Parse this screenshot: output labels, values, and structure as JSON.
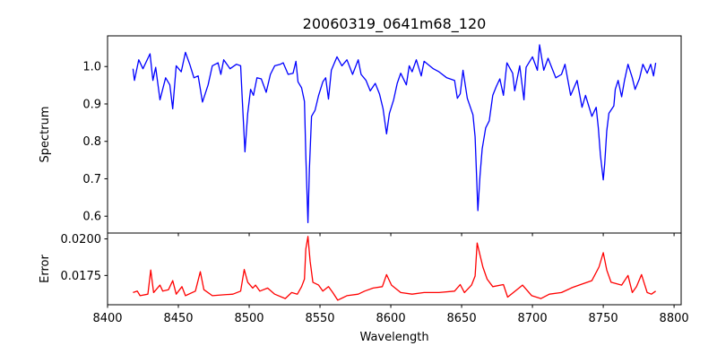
{
  "chart_data": [
    {
      "type": "line",
      "title": "20060319_0641m68_120",
      "xlabel": "",
      "ylabel": "Spectrum",
      "xlim": [
        8400,
        8805
      ],
      "ylim": [
        0.555,
        1.082
      ],
      "xticks": [
        8400,
        8450,
        8500,
        8550,
        8600,
        8650,
        8700,
        8750,
        8800
      ],
      "yticks": [
        0.6,
        0.7,
        0.8,
        0.9,
        1.0
      ],
      "ytick_labels": [
        "0.6",
        "0.7",
        "0.8",
        "0.9",
        "1.0"
      ],
      "color": "#0000ff",
      "grid": false,
      "x": [
        8418,
        8419,
        8422,
        8425,
        8430,
        8432,
        8434,
        8437,
        8441,
        8444,
        8446,
        8448.5,
        8452,
        8455,
        8458,
        8461,
        8464,
        8467,
        8471,
        8474,
        8478,
        8480,
        8482,
        8486.5,
        8491,
        8494,
        8495,
        8497,
        8499,
        8501,
        8503,
        8505.5,
        8508.5,
        8512,
        8515,
        8518,
        8522,
        8524,
        8527.5,
        8531,
        8533,
        8534.5,
        8537,
        8539,
        8540,
        8541.5,
        8542.5,
        8544,
        8546.5,
        8549,
        8552,
        8554,
        8556,
        8558,
        8562,
        8565.5,
        8569,
        8573,
        8577,
        8579,
        8582.5,
        8585.5,
        8589,
        8592,
        8594.5,
        8597,
        8599,
        8602,
        8604.5,
        8607,
        8611,
        8613,
        8615,
        8618,
        8621.5,
        8623.5,
        8630,
        8634,
        8639.5,
        8645,
        8647,
        8649,
        8651,
        8654,
        8658,
        8659.5,
        8661.5,
        8663,
        8664.5,
        8667,
        8669.5,
        8672,
        8674.5,
        8677,
        8679.5,
        8682,
        8686,
        8687.5,
        8691,
        8694,
        8695.5,
        8700,
        8703.5,
        8705,
        8708,
        8711,
        8716.5,
        8720.5,
        8723,
        8727,
        8731.5,
        8735,
        8737.5,
        8742,
        8745,
        8746.5,
        8748,
        8750,
        8751,
        8752.5,
        8754,
        8757.5,
        8758.5,
        8760.5,
        8763,
        8765,
        8767.5,
        8770.5,
        8772.5,
        8775.5,
        8778,
        8781,
        8783.5,
        8785.5,
        8787
      ],
      "y": [
        0.994,
        0.963,
        1.018,
        0.994,
        1.034,
        0.963,
        0.998,
        0.911,
        0.97,
        0.951,
        0.887,
        1.002,
        0.986,
        1.038,
        1.006,
        0.97,
        0.975,
        0.905,
        0.951,
        1.002,
        1.01,
        0.979,
        1.018,
        0.994,
        1.006,
        1.002,
        0.923,
        0.772,
        0.875,
        0.939,
        0.923,
        0.97,
        0.967,
        0.931,
        0.979,
        1.002,
        1.006,
        1.01,
        0.979,
        0.982,
        1.014,
        0.959,
        0.943,
        0.907,
        0.764,
        0.583,
        0.725,
        0.867,
        0.883,
        0.923,
        0.959,
        0.97,
        0.913,
        0.99,
        1.026,
        1.002,
        1.018,
        0.979,
        1.018,
        0.979,
        0.963,
        0.935,
        0.955,
        0.927,
        0.887,
        0.82,
        0.875,
        0.911,
        0.955,
        0.982,
        0.951,
        1.002,
        0.986,
        1.018,
        0.975,
        1.014,
        0.994,
        0.986,
        0.97,
        0.963,
        0.915,
        0.927,
        0.99,
        0.915,
        0.871,
        0.812,
        0.615,
        0.709,
        0.78,
        0.836,
        0.855,
        0.923,
        0.947,
        0.967,
        0.923,
        1.01,
        0.982,
        0.935,
        1.002,
        0.911,
        0.998,
        1.026,
        0.99,
        1.058,
        0.99,
        1.022,
        0.97,
        0.979,
        1.006,
        0.923,
        0.963,
        0.891,
        0.923,
        0.867,
        0.891,
        0.836,
        0.764,
        0.697,
        0.74,
        0.828,
        0.875,
        0.895,
        0.939,
        0.963,
        0.919,
        0.963,
        1.006,
        0.97,
        0.939,
        0.967,
        1.006,
        0.982,
        1.006,
        0.975,
        1.01
      ]
    },
    {
      "type": "line",
      "title": "",
      "xlabel": "Wavelength",
      "ylabel": "Error",
      "xlim": [
        8400,
        8805
      ],
      "ylim": [
        0.0155,
        0.0204
      ],
      "xticks": [
        8400,
        8450,
        8500,
        8550,
        8600,
        8650,
        8700,
        8750,
        8800
      ],
      "xtick_labels": [
        "8400",
        "8450",
        "8500",
        "8550",
        "8600",
        "8650",
        "8700",
        "8750",
        "8800"
      ],
      "yticks": [
        0.0175,
        0.02
      ],
      "ytick_labels": [
        "0.0175",
        "0.0200"
      ],
      "color": "#ff0000",
      "grid": false,
      "x": [
        8418,
        8421,
        8423,
        8428.5,
        8430.5,
        8432.5,
        8437,
        8439,
        8443,
        8446,
        8448.5,
        8452.5,
        8455,
        8462,
        8465.5,
        8468,
        8474,
        8482,
        8488.5,
        8494,
        8496.5,
        8499,
        8502.5,
        8504.5,
        8507.5,
        8513,
        8518,
        8525.5,
        8530,
        8534,
        8537,
        8539,
        8540,
        8541.5,
        8543,
        8545,
        8549,
        8552,
        8556,
        8559,
        8562.5,
        8569,
        8577,
        8581.5,
        8587.5,
        8594,
        8597,
        8600.5,
        8604.5,
        8607,
        8615,
        8623.5,
        8634,
        8645,
        8649,
        8652,
        8657,
        8659.5,
        8661,
        8663,
        8665,
        8668,
        8672,
        8679.5,
        8682.5,
        8689,
        8693,
        8699.5,
        8706,
        8712,
        8720.5,
        8728,
        8734,
        8742,
        8747,
        8750,
        8752.5,
        8755.5,
        8763,
        8767.5,
        8770.5,
        8773.5,
        8777,
        8781,
        8784,
        8787
      ],
      "y": [
        0.01633,
        0.01643,
        0.01612,
        0.01622,
        0.01787,
        0.01633,
        0.01684,
        0.01643,
        0.01653,
        0.01715,
        0.01622,
        0.01674,
        0.01612,
        0.01643,
        0.01776,
        0.01653,
        0.01612,
        0.01618,
        0.01622,
        0.01643,
        0.01791,
        0.01704,
        0.01664,
        0.01684,
        0.01643,
        0.01664,
        0.01622,
        0.01592,
        0.01633,
        0.01622,
        0.01674,
        0.01725,
        0.0193,
        0.02017,
        0.01849,
        0.01704,
        0.01684,
        0.01643,
        0.01674,
        0.01633,
        0.01581,
        0.01612,
        0.01622,
        0.01643,
        0.01664,
        0.01674,
        0.01756,
        0.01684,
        0.01653,
        0.01633,
        0.01622,
        0.01633,
        0.01633,
        0.01643,
        0.01688,
        0.01633,
        0.01684,
        0.01746,
        0.01972,
        0.01889,
        0.01807,
        0.01725,
        0.01674,
        0.01688,
        0.01602,
        0.01653,
        0.01684,
        0.01612,
        0.01592,
        0.01622,
        0.01633,
        0.01667,
        0.01688,
        0.01715,
        0.01807,
        0.01906,
        0.01787,
        0.01704,
        0.01684,
        0.0175,
        0.01633,
        0.01674,
        0.01756,
        0.01633,
        0.01622,
        0.01643
      ]
    }
  ]
}
